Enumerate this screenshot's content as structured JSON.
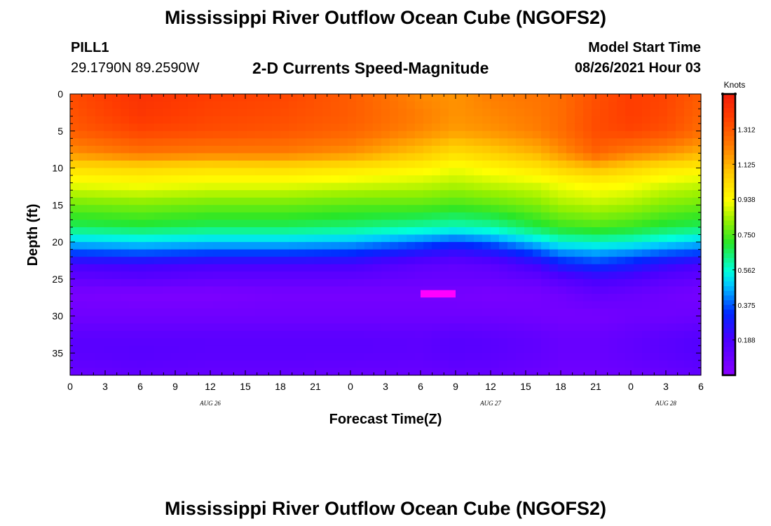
{
  "header": {
    "title": "Mississippi River Outflow Ocean Cube (NGOFS2)",
    "station_id": "PILL1",
    "station_coords": "29.1790N  89.2590W",
    "subtitle": "2-D Currents Speed-Magnitude",
    "model_label": "Model Start Time",
    "model_time": "08/26/2021 Hour 03"
  },
  "footer": {
    "title": "Mississippi River Outflow Ocean Cube (NGOFS2)"
  },
  "chart_data": {
    "type": "heatmap",
    "xlabel": "Forecast Time(Z)",
    "ylabel": "Depth (ft)",
    "x_hours": [
      0,
      3,
      6,
      9,
      12,
      15,
      18,
      21,
      24,
      27,
      30,
      33,
      36,
      39,
      42,
      45,
      48,
      51,
      54
    ],
    "x_tick_labels": [
      "0",
      "3",
      "6",
      "9",
      "12",
      "15",
      "18",
      "21",
      "0",
      "3",
      "6",
      "9",
      "12",
      "15",
      "18",
      "21",
      "0",
      "3",
      "6"
    ],
    "x_range": [
      0,
      54
    ],
    "date_labels": [
      {
        "text": "AUG 26",
        "hour": 12
      },
      {
        "text": "AUG 27",
        "hour": 36
      },
      {
        "text": "AUG 28",
        "hour": 51
      }
    ],
    "y_ticks": [
      0,
      5,
      10,
      15,
      20,
      25,
      30,
      35
    ],
    "y_range": [
      0,
      38
    ],
    "y_reversed": true,
    "colorbar": {
      "units": "Knots",
      "ticks": [
        "1.312",
        "1.125",
        "0.938",
        "0.750",
        "0.562",
        "0.375",
        "0.188"
      ],
      "range": [
        0,
        1.5
      ]
    },
    "time_hours": [
      0,
      6,
      12,
      18,
      24,
      30,
      33,
      36,
      40,
      42,
      45,
      48,
      51,
      54
    ],
    "depths_ft": [
      0,
      3,
      5,
      8,
      10,
      12,
      15,
      18,
      20,
      21,
      23,
      25,
      27,
      30,
      33,
      35,
      38
    ],
    "speed_knots": [
      [
        1.34,
        1.42,
        1.38,
        1.36,
        1.3,
        1.2,
        1.18,
        1.22,
        1.24,
        1.26,
        1.33,
        1.38,
        1.36,
        1.3
      ],
      [
        1.32,
        1.4,
        1.36,
        1.34,
        1.3,
        1.22,
        1.18,
        1.2,
        1.23,
        1.26,
        1.34,
        1.38,
        1.35,
        1.28
      ],
      [
        1.3,
        1.36,
        1.34,
        1.32,
        1.28,
        1.2,
        1.16,
        1.18,
        1.22,
        1.26,
        1.34,
        1.36,
        1.33,
        1.26
      ],
      [
        1.18,
        1.24,
        1.22,
        1.22,
        1.18,
        1.08,
        1.02,
        1.06,
        1.12,
        1.18,
        1.28,
        1.22,
        1.18,
        1.12
      ],
      [
        1.02,
        1.04,
        1.02,
        1.03,
        1.0,
        0.96,
        0.92,
        0.95,
        1.0,
        1.05,
        1.1,
        1.05,
        1.0,
        0.98
      ],
      [
        0.92,
        0.94,
        0.92,
        0.92,
        0.9,
        0.88,
        0.86,
        0.88,
        0.9,
        0.93,
        0.96,
        0.94,
        0.9,
        0.88
      ],
      [
        0.78,
        0.8,
        0.78,
        0.78,
        0.76,
        0.76,
        0.74,
        0.76,
        0.8,
        0.84,
        0.86,
        0.84,
        0.8,
        0.78
      ],
      [
        0.66,
        0.68,
        0.66,
        0.66,
        0.64,
        0.6,
        0.58,
        0.6,
        0.68,
        0.72,
        0.74,
        0.72,
        0.68,
        0.66
      ],
      [
        0.48,
        0.5,
        0.48,
        0.48,
        0.46,
        0.4,
        0.36,
        0.4,
        0.5,
        0.56,
        0.58,
        0.56,
        0.52,
        0.48
      ],
      [
        0.4,
        0.42,
        0.4,
        0.4,
        0.38,
        0.3,
        0.26,
        0.3,
        0.4,
        0.46,
        0.48,
        0.46,
        0.42,
        0.4
      ],
      [
        0.2,
        0.22,
        0.2,
        0.2,
        0.2,
        0.14,
        0.12,
        0.14,
        0.22,
        0.3,
        0.34,
        0.3,
        0.24,
        0.2
      ],
      [
        0.12,
        0.14,
        0.12,
        0.12,
        0.12,
        0.1,
        0.1,
        0.1,
        0.12,
        0.16,
        0.2,
        0.18,
        0.14,
        0.12
      ],
      [
        0.05,
        0.04,
        0.04,
        0.06,
        0.06,
        0.06,
        0.06,
        0.05,
        0.06,
        0.08,
        0.12,
        0.1,
        0.08,
        0.06
      ],
      [
        0.08,
        0.08,
        0.08,
        0.08,
        0.08,
        0.08,
        0.08,
        0.08,
        0.07,
        0.06,
        0.06,
        0.08,
        0.08,
        0.09
      ],
      [
        0.14,
        0.14,
        0.14,
        0.14,
        0.14,
        0.13,
        0.15,
        0.14,
        0.12,
        0.1,
        0.1,
        0.12,
        0.14,
        0.16
      ],
      [
        0.14,
        0.15,
        0.14,
        0.14,
        0.14,
        0.13,
        0.15,
        0.14,
        0.12,
        0.1,
        0.1,
        0.12,
        0.14,
        0.16
      ],
      [
        0.1,
        0.12,
        0.11,
        0.11,
        0.1,
        0.1,
        0.11,
        0.11,
        0.09,
        0.08,
        0.08,
        0.09,
        0.1,
        0.12
      ]
    ],
    "anomaly": {
      "hour_start": 30,
      "hour_end": 33,
      "depth_start": 26.5,
      "depth_end": 27.5,
      "color": "#ff00ff"
    }
  }
}
